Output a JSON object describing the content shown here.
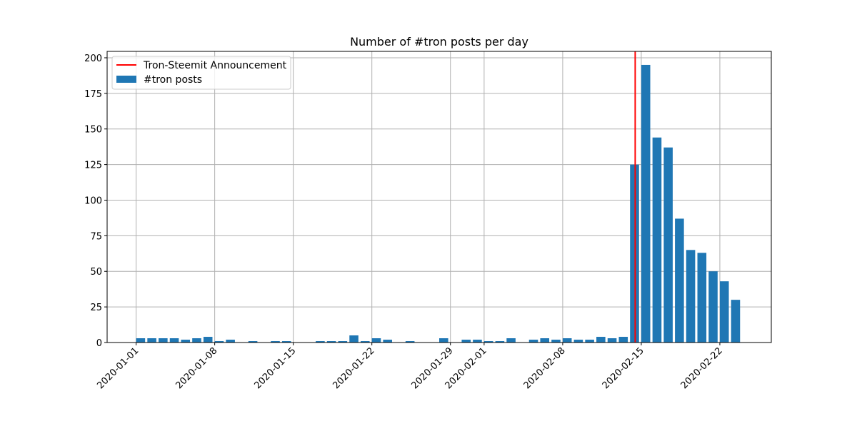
{
  "chart_data": {
    "type": "bar",
    "title": "Number of #tron posts per day",
    "xlabel": "",
    "ylabel": "",
    "xlim": [
      "2019-12-29T10:00",
      "2020-02-26T14:00"
    ],
    "ylim": [
      0,
      204.5
    ],
    "grid": true,
    "legend_placement": "upper-left",
    "x_ticks": [
      "2020-01-01",
      "2020-01-08",
      "2020-01-15",
      "2020-01-22",
      "2020-01-29",
      "2020-02-01",
      "2020-02-08",
      "2020-02-15",
      "2020-02-22"
    ],
    "y_ticks": [
      0,
      25,
      50,
      75,
      100,
      125,
      150,
      175,
      200
    ],
    "series": [
      {
        "name": "#tron posts",
        "color": "#1f77b4",
        "dates": [
          "2020-01-01",
          "2020-01-02",
          "2020-01-03",
          "2020-01-04",
          "2020-01-05",
          "2020-01-06",
          "2020-01-07",
          "2020-01-08",
          "2020-01-09",
          "2020-01-11",
          "2020-01-13",
          "2020-01-14",
          "2020-01-17",
          "2020-01-18",
          "2020-01-19",
          "2020-01-20",
          "2020-01-21",
          "2020-01-22",
          "2020-01-23",
          "2020-01-25",
          "2020-01-28",
          "2020-01-30",
          "2020-01-31",
          "2020-02-01",
          "2020-02-02",
          "2020-02-03",
          "2020-02-05",
          "2020-02-06",
          "2020-02-07",
          "2020-02-08",
          "2020-02-09",
          "2020-02-10",
          "2020-02-11",
          "2020-02-12",
          "2020-02-13",
          "2020-02-14",
          "2020-02-15",
          "2020-02-16",
          "2020-02-17",
          "2020-02-18",
          "2020-02-19",
          "2020-02-20",
          "2020-02-21",
          "2020-02-22",
          "2020-02-23"
        ],
        "values": [
          3,
          3,
          3,
          3,
          2,
          3,
          4,
          1,
          2,
          1,
          1,
          1,
          1,
          1,
          1,
          5,
          1,
          3,
          2,
          1,
          3,
          2,
          2,
          1,
          1,
          3,
          2,
          3,
          2,
          3,
          2,
          2,
          4,
          3,
          4,
          125,
          195,
          144,
          137,
          87,
          65,
          63,
          50,
          43,
          30
        ]
      }
    ],
    "annotations": [
      {
        "name": "Tron-Steemit Announcement",
        "type": "vline",
        "x": "2020-02-14T11:00",
        "color": "#ff0000"
      }
    ]
  }
}
